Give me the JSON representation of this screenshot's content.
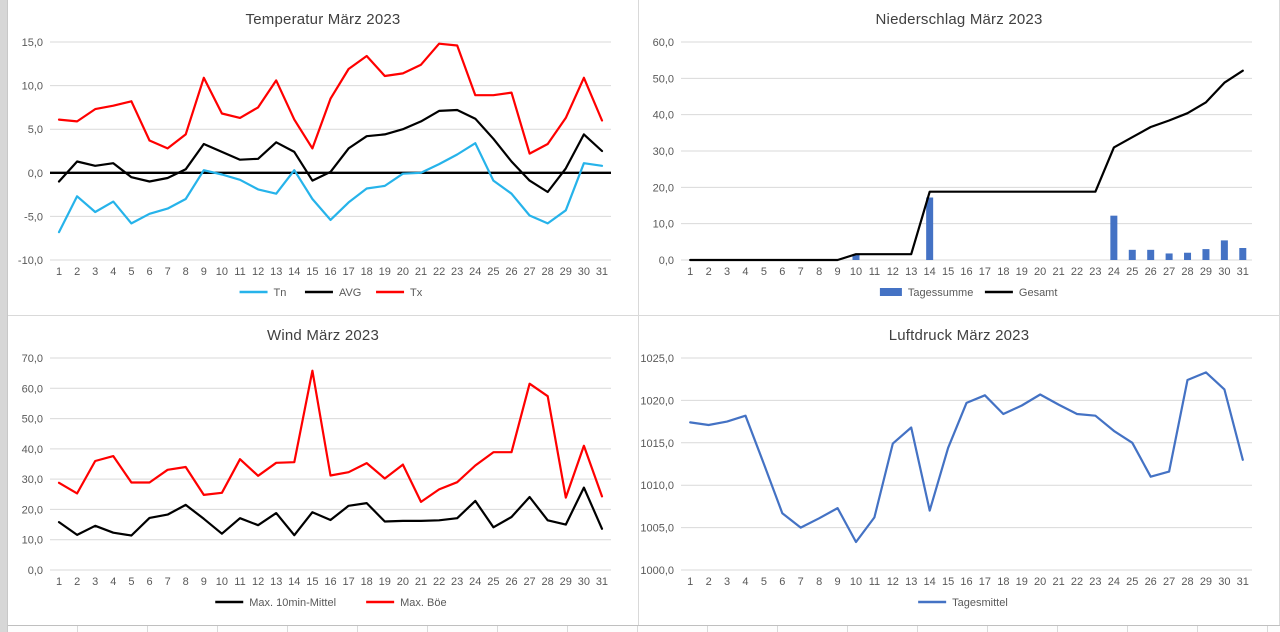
{
  "colors": {
    "gridline": "#d9d9d9",
    "axis_text": "#595959",
    "title_text": "#404040",
    "zero_line": "#000000",
    "bar_blue": "#4472c4",
    "line_red": "#ff0000",
    "line_cyan": "#26b3ea",
    "line_black": "#000000"
  },
  "chart_data": [
    {
      "id": "temperature",
      "type": "line",
      "title": "Temperatur März 2023",
      "xlabel": "",
      "ylabel": "",
      "ylim": [
        -10,
        15
      ],
      "grid": true,
      "zero_line_bold": true,
      "legend_position": "bottom",
      "categories": [
        "1",
        "2",
        "3",
        "4",
        "5",
        "6",
        "7",
        "8",
        "9",
        "10",
        "11",
        "12",
        "13",
        "14",
        "15",
        "16",
        "17",
        "18",
        "19",
        "20",
        "21",
        "22",
        "23",
        "24",
        "25",
        "26",
        "27",
        "28",
        "29",
        "30",
        "31"
      ],
      "yticks": [
        15,
        10,
        5,
        0,
        -5,
        -10
      ],
      "ytick_labels": [
        "15,0",
        "10,0",
        "5,0",
        "0,0",
        "-5,0",
        "-10,0"
      ],
      "series": [
        {
          "name": "Tn",
          "type": "line",
          "color": "#26b3ea",
          "values": [
            -6.8,
            -2.7,
            -4.5,
            -3.3,
            -5.8,
            -4.7,
            -4.1,
            -3.0,
            0.3,
            -0.2,
            -0.8,
            -1.9,
            -2.4,
            0.3,
            -3.0,
            -5.4,
            -3.4,
            -1.8,
            -1.5,
            -0.1,
            0.0,
            1.0,
            2.1,
            3.4,
            -0.9,
            -2.4,
            -4.9,
            -5.8,
            -4.3,
            1.1,
            0.8
          ]
        },
        {
          "name": "AVG",
          "type": "line",
          "color": "#000000",
          "values": [
            -1.0,
            1.3,
            0.8,
            1.1,
            -0.5,
            -1.0,
            -0.6,
            0.4,
            3.3,
            2.4,
            1.5,
            1.6,
            3.5,
            2.4,
            -0.9,
            0.1,
            2.8,
            4.2,
            4.4,
            5.0,
            5.9,
            7.1,
            7.2,
            6.2,
            3.9,
            1.3,
            -0.9,
            -2.2,
            0.5,
            4.4,
            2.5
          ]
        },
        {
          "name": "Tx",
          "type": "line",
          "color": "#ff0000",
          "values": [
            6.1,
            5.9,
            7.3,
            7.7,
            8.2,
            3.7,
            2.8,
            4.4,
            10.9,
            6.8,
            6.3,
            7.5,
            10.6,
            6.1,
            2.8,
            8.5,
            11.9,
            13.4,
            11.1,
            11.4,
            12.4,
            14.8,
            14.6,
            8.9,
            8.9,
            9.2,
            2.2,
            3.3,
            6.3,
            10.9,
            6.0
          ]
        }
      ]
    },
    {
      "id": "precipitation",
      "type": "combo",
      "title": "Niederschlag März 2023",
      "xlabel": "",
      "ylabel": "",
      "ylim": [
        0,
        60
      ],
      "grid": true,
      "zero_line_bold": false,
      "legend_position": "bottom",
      "categories": [
        "1",
        "2",
        "3",
        "4",
        "5",
        "6",
        "7",
        "8",
        "9",
        "10",
        "11",
        "12",
        "13",
        "14",
        "15",
        "16",
        "17",
        "18",
        "19",
        "20",
        "21",
        "22",
        "23",
        "24",
        "25",
        "26",
        "27",
        "28",
        "29",
        "30",
        "31"
      ],
      "yticks": [
        60,
        50,
        40,
        30,
        20,
        10,
        0
      ],
      "ytick_labels": [
        "60,0",
        "50,0",
        "40,0",
        "30,0",
        "20,0",
        "10,0",
        "0,0"
      ],
      "series": [
        {
          "name": "Tagessumme",
          "type": "bar",
          "color": "#4472c4",
          "values": [
            0,
            0,
            0,
            0,
            0,
            0,
            0,
            0,
            0,
            1.6,
            0,
            0,
            0,
            17.2,
            0,
            0,
            0,
            0,
            0,
            0,
            0,
            0,
            0,
            12.2,
            2.8,
            2.8,
            1.8,
            2.0,
            3.0,
            5.4,
            3.3
          ]
        },
        {
          "name": "Gesamt",
          "type": "line",
          "color": "#000000",
          "values": [
            0,
            0,
            0,
            0,
            0,
            0,
            0,
            0,
            0,
            1.6,
            1.6,
            1.6,
            1.6,
            18.8,
            18.8,
            18.8,
            18.8,
            18.8,
            18.8,
            18.8,
            18.8,
            18.8,
            18.8,
            31.0,
            33.8,
            36.6,
            38.4,
            40.4,
            43.4,
            48.8,
            52.1
          ]
        }
      ]
    },
    {
      "id": "wind",
      "type": "line",
      "title": "Wind März 2023",
      "xlabel": "",
      "ylabel": "",
      "ylim": [
        0,
        70
      ],
      "grid": true,
      "zero_line_bold": false,
      "legend_position": "bottom",
      "categories": [
        "1",
        "2",
        "3",
        "4",
        "5",
        "6",
        "7",
        "8",
        "9",
        "10",
        "11",
        "12",
        "13",
        "14",
        "15",
        "16",
        "17",
        "18",
        "19",
        "20",
        "21",
        "22",
        "23",
        "24",
        "25",
        "26",
        "27",
        "28",
        "29",
        "30",
        "31"
      ],
      "yticks": [
        70,
        60,
        50,
        40,
        30,
        20,
        10,
        0
      ],
      "ytick_labels": [
        "70,0",
        "60,0",
        "50,0",
        "40,0",
        "30,0",
        "20,0",
        "10,0",
        "0,0"
      ],
      "series": [
        {
          "name": "Max. 10min-Mittel",
          "type": "line",
          "color": "#000000",
          "values": [
            15.8,
            11.6,
            14.6,
            12.3,
            11.4,
            17.2,
            18.3,
            21.5,
            16.9,
            12.0,
            17.1,
            14.8,
            18.8,
            11.5,
            19.1,
            16.5,
            21.2,
            22.1,
            16.0,
            16.2,
            16.2,
            16.4,
            17.1,
            22.8,
            14.1,
            17.5,
            24.1,
            16.4,
            15.0,
            27.2,
            13.6
          ]
        },
        {
          "name": "Max. Böe",
          "type": "line",
          "color": "#ff0000",
          "values": [
            28.8,
            25.3,
            36.0,
            37.6,
            28.9,
            28.9,
            33.1,
            34.0,
            24.8,
            25.5,
            36.6,
            31.1,
            35.4,
            35.6,
            65.8,
            31.2,
            32.3,
            35.3,
            30.2,
            34.8,
            22.5,
            26.6,
            29.0,
            34.5,
            38.9,
            38.9,
            61.5,
            57.4,
            23.9,
            41.0,
            24.3
          ]
        }
      ]
    },
    {
      "id": "pressure",
      "type": "line",
      "title": "Luftdruck März 2023",
      "xlabel": "",
      "ylabel": "",
      "ylim": [
        1000,
        1025
      ],
      "grid": true,
      "zero_line_bold": false,
      "legend_position": "bottom",
      "categories": [
        "1",
        "2",
        "3",
        "4",
        "5",
        "6",
        "7",
        "8",
        "9",
        "10",
        "11",
        "12",
        "13",
        "14",
        "15",
        "16",
        "17",
        "18",
        "19",
        "20",
        "21",
        "22",
        "23",
        "24",
        "25",
        "26",
        "27",
        "28",
        "29",
        "30",
        "31"
      ],
      "yticks": [
        1025,
        1020,
        1015,
        1010,
        1005,
        1000
      ],
      "ytick_labels": [
        "1025,0",
        "1020,0",
        "1015,0",
        "1010,0",
        "1005,0",
        "1000,0"
      ],
      "series": [
        {
          "name": "Tagesmittel",
          "type": "line",
          "color": "#4472c4",
          "values": [
            1017.4,
            1017.1,
            1017.5,
            1018.2,
            1012.5,
            1006.7,
            1005.0,
            1006.1,
            1007.3,
            1003.3,
            1006.2,
            1014.9,
            1016.8,
            1007.0,
            1014.4,
            1019.7,
            1020.6,
            1018.4,
            1019.4,
            1020.7,
            1019.5,
            1018.4,
            1018.2,
            1016.4,
            1015.0,
            1011.0,
            1011.6,
            1022.4,
            1023.3,
            1021.3,
            1013.0
          ]
        }
      ]
    }
  ]
}
